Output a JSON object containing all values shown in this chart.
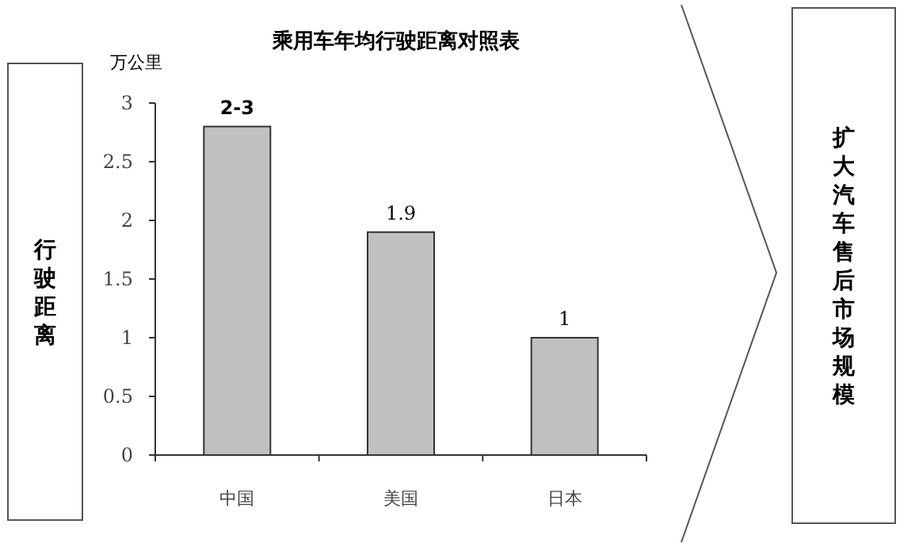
{
  "chart_data": {
    "type": "bar",
    "title": "乘用车年均行驶距离对照表",
    "ylabel": "万公里",
    "categories": [
      "中国",
      "美国",
      "日本"
    ],
    "values": [
      2.8,
      1.9,
      1
    ],
    "value_labels": [
      "2-3",
      "1.9",
      "1"
    ],
    "color": "#c0c0c0",
    "ylim": [
      0,
      3
    ],
    "yticks": [
      0,
      0.5,
      1,
      1.5,
      2,
      2.5,
      3
    ],
    "grid": false,
    "annotations": [
      "行驶距离",
      "扩大汽车售后市场规模"
    ]
  }
}
